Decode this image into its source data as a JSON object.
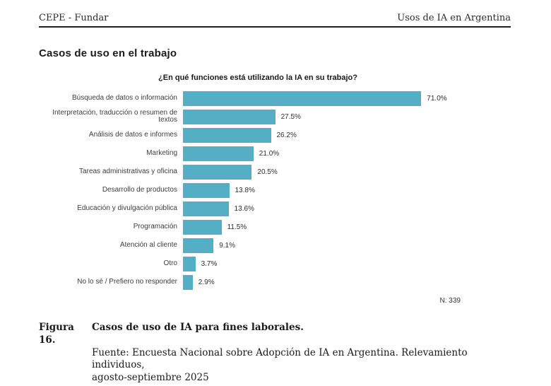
{
  "header": {
    "left": "CEPE - Fundar",
    "right": "Usos de IA en Argentina"
  },
  "section_title": "Casos de uso en el trabajo",
  "chart_data": {
    "type": "bar",
    "orientation": "horizontal",
    "title": "¿En qué funciones está utilizando la IA en su trabajo?",
    "categories": [
      "Búsqueda de datos o información",
      "Interpretación, traducción o resumen de textos",
      "Análisis de datos e informes",
      "Marketing",
      "Tareas administrativas y oficina",
      "Desarrollo de productos",
      "Educación y divulgación pública",
      "Programación",
      "Atención al cliente",
      "Otro",
      "No lo sé / Prefiero no responder"
    ],
    "values": [
      71.0,
      27.5,
      26.2,
      21.0,
      20.5,
      13.8,
      13.6,
      11.5,
      9.1,
      3.7,
      2.9
    ],
    "value_labels": [
      "71.0%",
      "27.5%",
      "26.2%",
      "21.0%",
      "20.5%",
      "13.8%",
      "13.6%",
      "11.5%",
      "9.1%",
      "3.7%",
      "2.9%"
    ],
    "bar_color": "#54afc5",
    "xlim": [
      0,
      100
    ],
    "grid": false,
    "legend": "none",
    "sample_note": "N: 339"
  },
  "caption": {
    "figure_label": "Figura 16.",
    "figure_title": "Casos de uso de IA para fines laborales.",
    "source_line1": "Fuente: Encuesta Nacional sobre Adopción de IA en Argentina. Relevamiento individuos,",
    "source_line2": "agosto-septiembre 2025"
  }
}
